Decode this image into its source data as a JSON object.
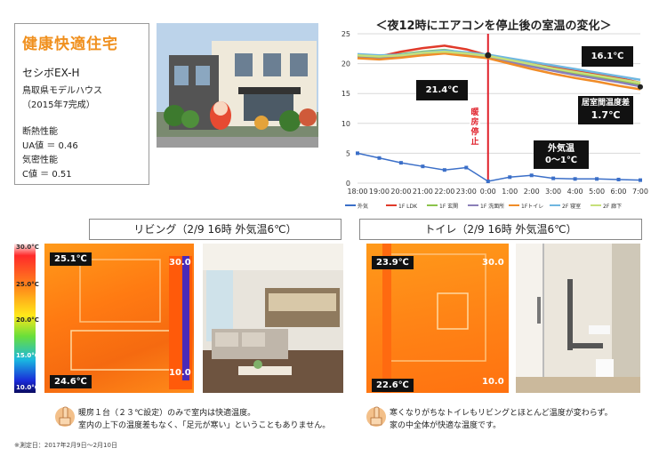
{
  "info": {
    "title": "健康快適住宅",
    "model": "セシボEX-H",
    "location": "鳥取県モデルハウス",
    "completed": "（2015年7完成）",
    "insulation_label": "断熱性能",
    "ua": "UA値 ＝ 0.46",
    "airtight_label": "気密性能",
    "c": "C値 ＝ 0.51"
  },
  "chart_data": {
    "type": "line",
    "title": "＜夜12時にエアコンを停止後の室温の変化＞",
    "categories": [
      "18:00",
      "19:00",
      "20:00",
      "21:00",
      "22:00",
      "23:00",
      "0:00",
      "1:00",
      "2:00",
      "3:00",
      "4:00",
      "5:00",
      "6:00",
      "7:00"
    ],
    "ylim": [
      0,
      25
    ],
    "yticks": [
      0,
      5,
      10,
      15,
      20,
      25
    ],
    "series": [
      {
        "name": "外気",
        "color": "#3b6fc8",
        "values": [
          5.0,
          4.2,
          3.4,
          2.8,
          2.2,
          2.6,
          0.3,
          1.0,
          1.3,
          0.8,
          0.7,
          0.7,
          0.6,
          0.5
        ]
      },
      {
        "name": "1F LDK",
        "color": "#e03a2a",
        "values": [
          21.5,
          21.2,
          22.0,
          22.6,
          23.0,
          22.4,
          21.4,
          20.8,
          20.1,
          19.4,
          18.8,
          18.2,
          17.6,
          16.8
        ]
      },
      {
        "name": "1F 玄関",
        "color": "#8bc34a",
        "values": [
          21.3,
          21.0,
          21.6,
          22.0,
          22.3,
          21.8,
          21.2,
          20.5,
          19.7,
          19.0,
          18.3,
          17.7,
          17.1,
          16.4
        ]
      },
      {
        "name": "1F 洗面所",
        "color": "#8a7fb8",
        "values": [
          21.0,
          20.8,
          21.2,
          21.6,
          21.9,
          21.5,
          21.0,
          20.3,
          19.5,
          18.8,
          18.1,
          17.5,
          16.9,
          16.2
        ]
      },
      {
        "name": "1Fトイレ",
        "color": "#f08c28",
        "values": [
          20.9,
          20.7,
          21.0,
          21.4,
          21.7,
          21.3,
          20.9,
          20.0,
          19.1,
          18.3,
          17.6,
          17.0,
          16.3,
          15.7
        ]
      },
      {
        "name": "2F 寝室",
        "color": "#6fb7e0",
        "values": [
          21.6,
          21.4,
          21.5,
          21.9,
          22.2,
          21.9,
          21.5,
          20.9,
          20.3,
          19.7,
          19.1,
          18.5,
          17.9,
          17.3
        ]
      },
      {
        "name": "2F 廊下",
        "color": "#c6e07a",
        "values": [
          21.4,
          21.2,
          21.4,
          21.8,
          22.0,
          21.7,
          21.3,
          20.6,
          19.9,
          19.2,
          18.6,
          18.0,
          17.4,
          16.8
        ]
      }
    ],
    "callouts": {
      "start_temp": "21.4℃",
      "end_temp": "16.1℃",
      "stop_label": "暖房停止",
      "diff_label": "居室間温度差",
      "diff_value": "1.7℃",
      "outside_label": "外気温",
      "outside_value": "0～1℃"
    }
  },
  "living": {
    "header": "リビング（2/9 16時 外気温6℃）",
    "top_temp": "25.1℃",
    "bottom_temp": "24.6℃",
    "scale_top": "30.0",
    "scale_bottom": "10.0",
    "legend": [
      "30.0°C",
      "25.0°C",
      "20.0°C",
      "15.0°C",
      "10.0°C"
    ]
  },
  "toilet": {
    "header": "トイレ（2/9 16時 外気温6℃）",
    "top_temp": "23.9℃",
    "bottom_temp": "22.6℃",
    "scale_top": "30.0",
    "scale_bottom": "10.0"
  },
  "notes": {
    "left_line1": "暖房１台（２３℃設定）のみで室内は快適温度。",
    "left_line2": "室内の上下の温度差もなく、「足元が寒い」ということもありません。",
    "right_line1": "寒くなりがちなトイレもリビングとほとんど温度が変わらず。",
    "right_line2": "家の中全体が快適な温度です。",
    "measure_period": "※測定日：2017年2月9日～2月10日"
  },
  "colors": {
    "accent": "#f0901e",
    "stop_line": "#e0202a"
  }
}
